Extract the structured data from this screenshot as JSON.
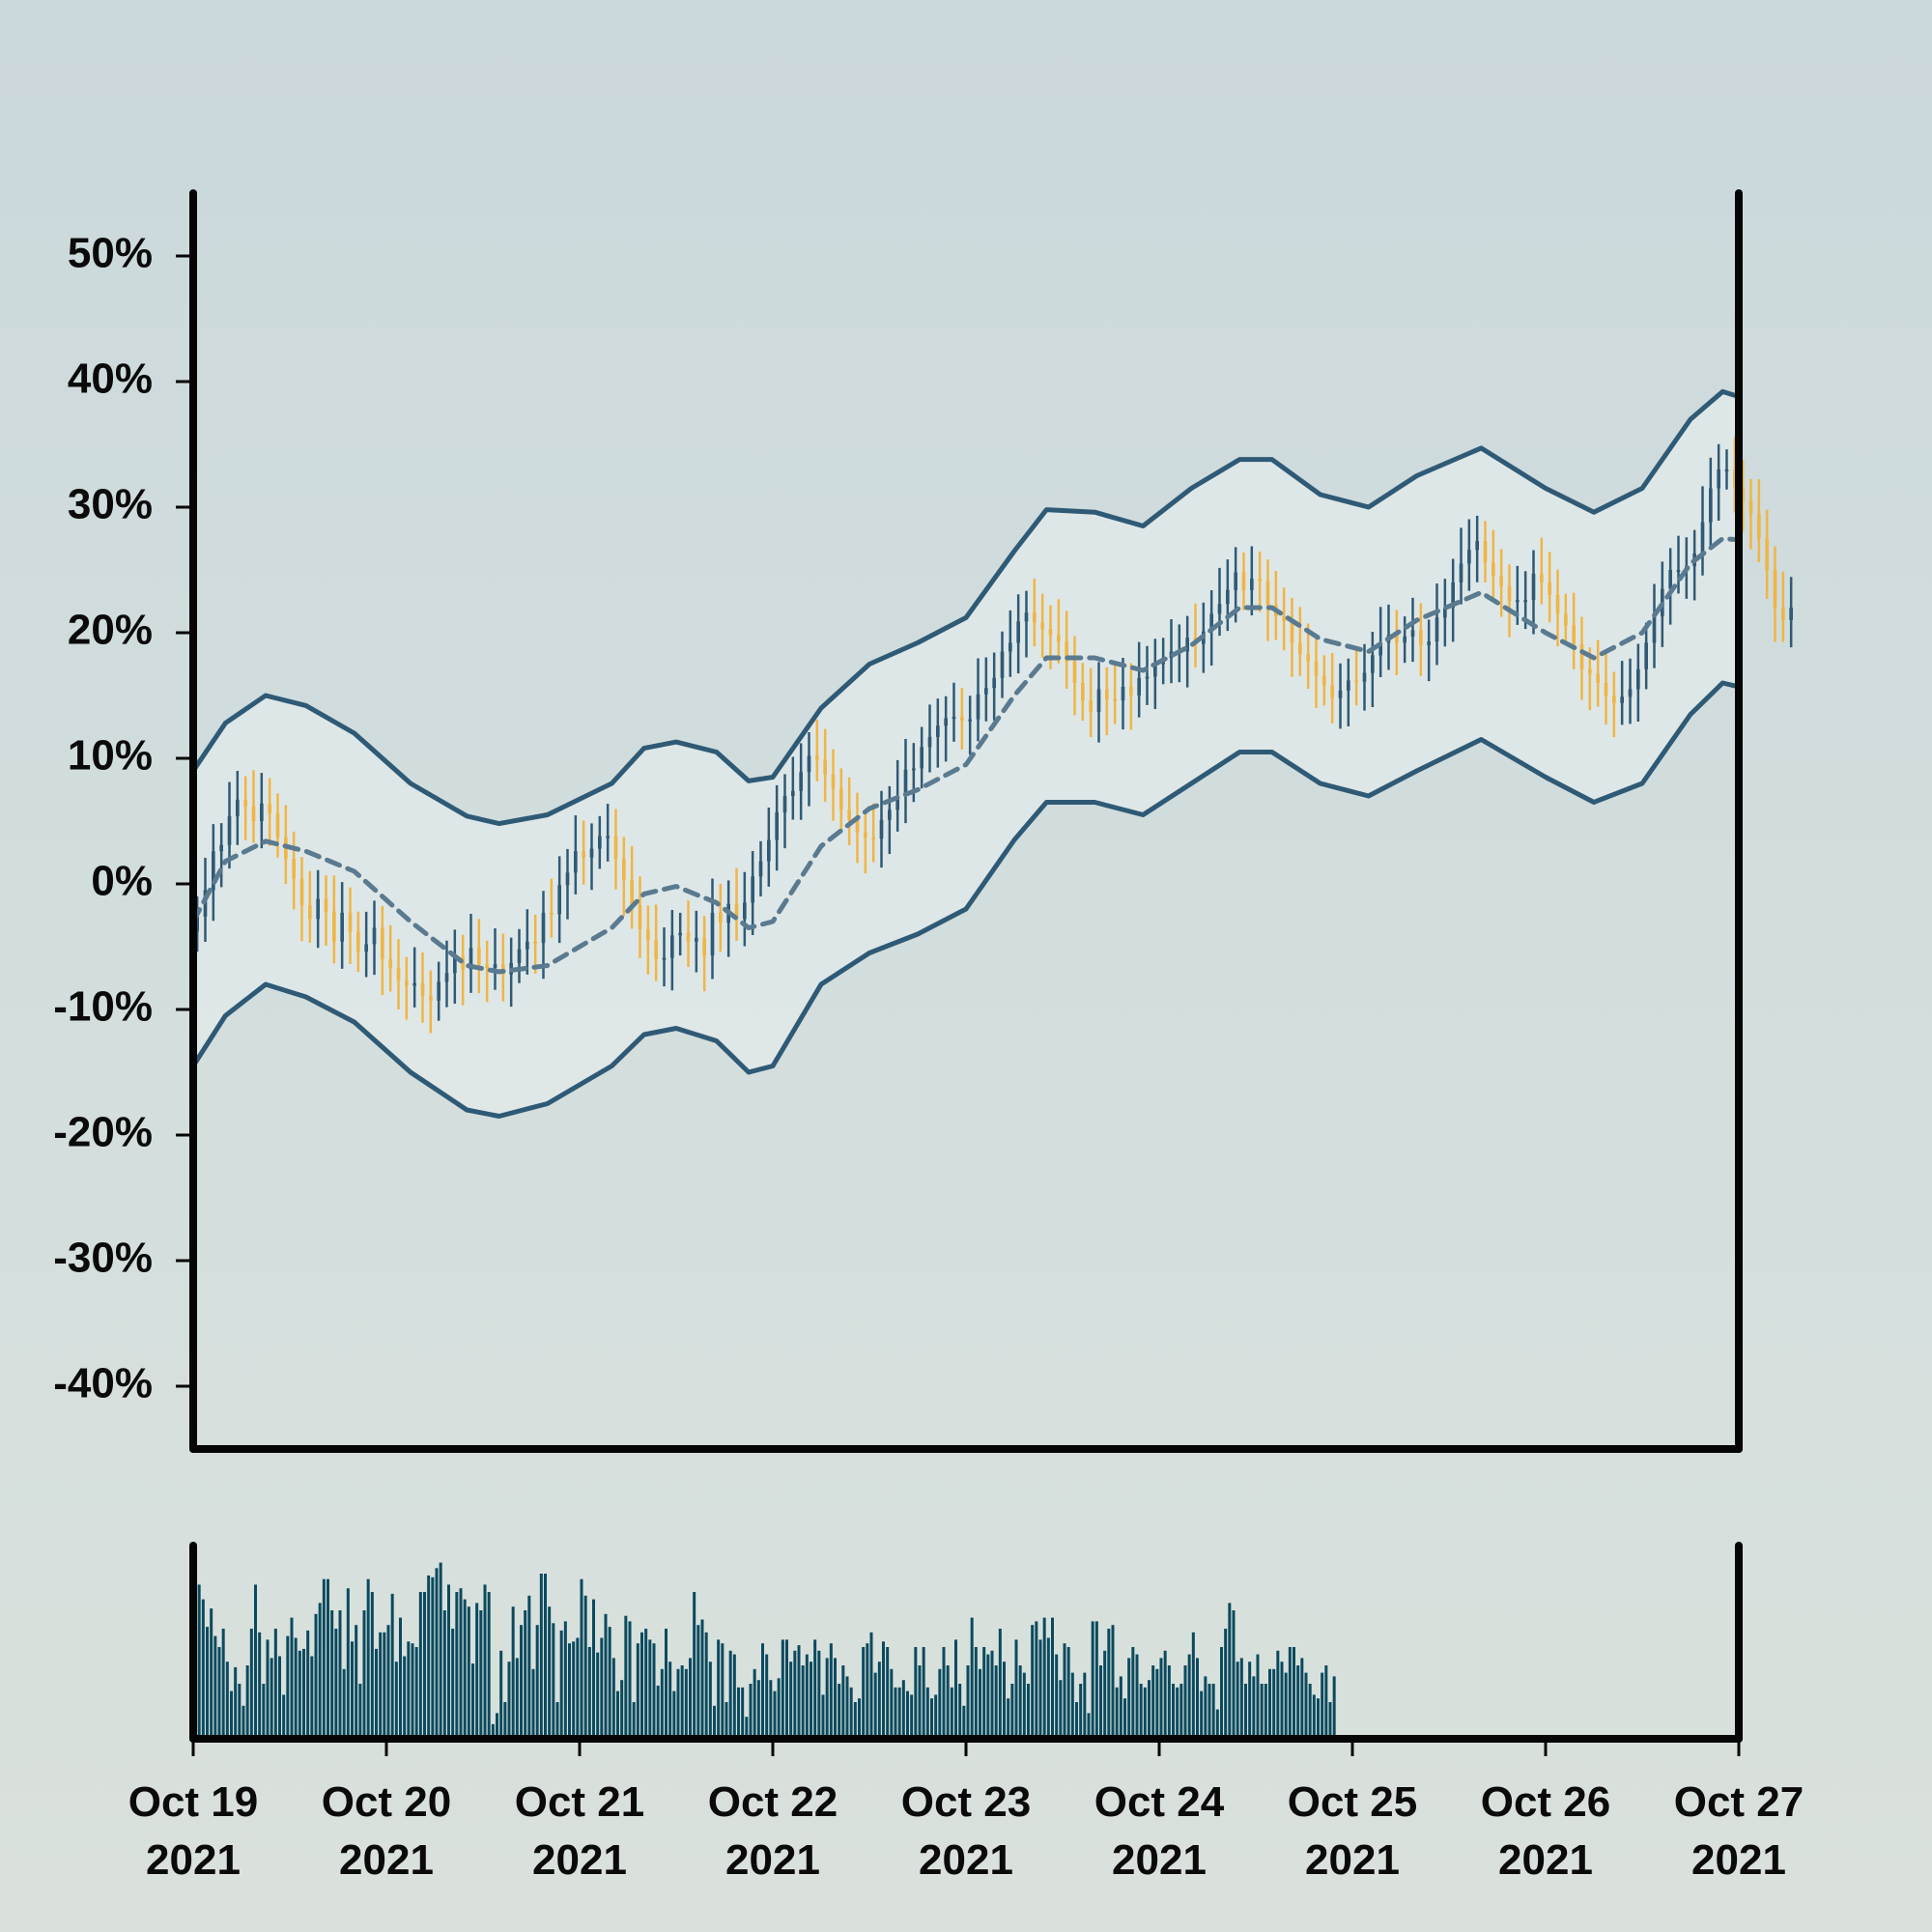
{
  "chart_data": {
    "type": "candlestick",
    "title": "",
    "xlabel": "",
    "ylabel": "",
    "x_start": "2021-10-19",
    "x_end": "2021-10-27",
    "ylim": [
      -45,
      55
    ],
    "y_ticks": [
      {
        "value": 50,
        "label": "50%"
      },
      {
        "value": 40,
        "label": "40%"
      },
      {
        "value": 30,
        "label": "30%"
      },
      {
        "value": 20,
        "label": "20%"
      },
      {
        "value": 10,
        "label": "10%"
      },
      {
        "value": 0,
        "label": "0%"
      },
      {
        "value": -10,
        "label": "-10%"
      },
      {
        "value": -20,
        "label": "-20%"
      },
      {
        "value": -30,
        "label": "-30%"
      },
      {
        "value": -40,
        "label": "-40%"
      }
    ],
    "x_ticks": [
      {
        "date": "2021-10-19",
        "line1": "Oct 19",
        "line2": "2021"
      },
      {
        "date": "2021-10-20",
        "line1": "Oct 20",
        "line2": "2021"
      },
      {
        "date": "2021-10-21",
        "line1": "Oct 21",
        "line2": "2021"
      },
      {
        "date": "2021-10-22",
        "line1": "Oct 22",
        "line2": "2021"
      },
      {
        "date": "2021-10-23",
        "line1": "Oct 23",
        "line2": "2021"
      },
      {
        "date": "2021-10-24",
        "line1": "Oct 24",
        "line2": "2021"
      },
      {
        "date": "2021-10-25",
        "line1": "Oct 25",
        "line2": "2021"
      },
      {
        "date": "2021-10-26",
        "line1": "Oct 26",
        "line2": "2021"
      },
      {
        "date": "2021-10-27",
        "line1": "Oct 27",
        "line2": "2021"
      }
    ],
    "colors": {
      "up": "#2f5a76",
      "down": "#f0b545",
      "band": "#2f5a76",
      "band_fill": "#e1e9e9",
      "mid_line": "#5a7a90",
      "volume": "#0b4a5e",
      "axis": "#050505"
    },
    "bands": {
      "upper": [
        {
          "x": "2021-10-19T00:00",
          "y": 9.0
        },
        {
          "x": "2021-10-19T04:00",
          "y": 12.8
        },
        {
          "x": "2021-10-19T09:00",
          "y": 15.0
        },
        {
          "x": "2021-10-19T14:00",
          "y": 14.2
        },
        {
          "x": "2021-10-19T20:00",
          "y": 12.0
        },
        {
          "x": "2021-10-20T03:00",
          "y": 8.0
        },
        {
          "x": "2021-10-20T10:00",
          "y": 5.4
        },
        {
          "x": "2021-10-20T14:00",
          "y": 4.8
        },
        {
          "x": "2021-10-20T20:00",
          "y": 5.5
        },
        {
          "x": "2021-10-21T04:00",
          "y": 8.0
        },
        {
          "x": "2021-10-21T08:00",
          "y": 10.8
        },
        {
          "x": "2021-10-21T12:00",
          "y": 11.3
        },
        {
          "x": "2021-10-21T17:00",
          "y": 10.5
        },
        {
          "x": "2021-10-21T21:00",
          "y": 8.2
        },
        {
          "x": "2021-10-22T00:00",
          "y": 8.5
        },
        {
          "x": "2021-10-22T06:00",
          "y": 14.0
        },
        {
          "x": "2021-10-22T12:00",
          "y": 17.5
        },
        {
          "x": "2021-10-22T18:00",
          "y": 19.2
        },
        {
          "x": "2021-10-23T00:00",
          "y": 21.2
        },
        {
          "x": "2021-10-23T06:00",
          "y": 26.5
        },
        {
          "x": "2021-10-23T10:00",
          "y": 29.8
        },
        {
          "x": "2021-10-23T16:00",
          "y": 29.6
        },
        {
          "x": "2021-10-23T22:00",
          "y": 28.5
        },
        {
          "x": "2021-10-24T04:00",
          "y": 31.5
        },
        {
          "x": "2021-10-24T10:00",
          "y": 33.8
        },
        {
          "x": "2021-10-24T14:00",
          "y": 33.8
        },
        {
          "x": "2021-10-24T20:00",
          "y": 31.0
        },
        {
          "x": "2021-10-25T02:00",
          "y": 30.0
        },
        {
          "x": "2021-10-25T08:00",
          "y": 32.5
        },
        {
          "x": "2021-10-25T16:00",
          "y": 34.7
        },
        {
          "x": "2021-10-26T00:00",
          "y": 31.5
        },
        {
          "x": "2021-10-26T06:00",
          "y": 29.6
        },
        {
          "x": "2021-10-26T12:00",
          "y": 31.5
        },
        {
          "x": "2021-10-26T18:00",
          "y": 37.0
        },
        {
          "x": "2021-10-26T22:00",
          "y": 39.2
        },
        {
          "x": "2021-10-27T00:00",
          "y": 38.8
        }
      ],
      "middle": [
        {
          "x": "2021-10-19T00:00",
          "y": -3.0
        },
        {
          "x": "2021-10-19T04:00",
          "y": 1.8
        },
        {
          "x": "2021-10-19T09:00",
          "y": 3.4
        },
        {
          "x": "2021-10-19T14:00",
          "y": 2.6
        },
        {
          "x": "2021-10-19T20:00",
          "y": 1.0
        },
        {
          "x": "2021-10-20T03:00",
          "y": -3.0
        },
        {
          "x": "2021-10-20T10:00",
          "y": -6.5
        },
        {
          "x": "2021-10-20T14:00",
          "y": -7.0
        },
        {
          "x": "2021-10-20T20:00",
          "y": -6.5
        },
        {
          "x": "2021-10-21T04:00",
          "y": -3.5
        },
        {
          "x": "2021-10-21T08:00",
          "y": -0.8
        },
        {
          "x": "2021-10-21T12:00",
          "y": -0.2
        },
        {
          "x": "2021-10-21T17:00",
          "y": -1.5
        },
        {
          "x": "2021-10-21T21:00",
          "y": -3.5
        },
        {
          "x": "2021-10-22T00:00",
          "y": -3.0
        },
        {
          "x": "2021-10-22T06:00",
          "y": 3.0
        },
        {
          "x": "2021-10-22T12:00",
          "y": 6.0
        },
        {
          "x": "2021-10-22T18:00",
          "y": 7.5
        },
        {
          "x": "2021-10-23T00:00",
          "y": 9.5
        },
        {
          "x": "2021-10-23T06:00",
          "y": 15.0
        },
        {
          "x": "2021-10-23T10:00",
          "y": 18.0
        },
        {
          "x": "2021-10-23T16:00",
          "y": 18.0
        },
        {
          "x": "2021-10-23T22:00",
          "y": 17.0
        },
        {
          "x": "2021-10-24T04:00",
          "y": 19.0
        },
        {
          "x": "2021-10-24T10:00",
          "y": 22.0
        },
        {
          "x": "2021-10-24T14:00",
          "y": 22.0
        },
        {
          "x": "2021-10-24T20:00",
          "y": 19.5
        },
        {
          "x": "2021-10-25T02:00",
          "y": 18.5
        },
        {
          "x": "2021-10-25T08:00",
          "y": 21.0
        },
        {
          "x": "2021-10-25T16:00",
          "y": 23.2
        },
        {
          "x": "2021-10-26T00:00",
          "y": 20.0
        },
        {
          "x": "2021-10-26T06:00",
          "y": 18.0
        },
        {
          "x": "2021-10-26T12:00",
          "y": 20.0
        },
        {
          "x": "2021-10-26T18:00",
          "y": 25.5
        },
        {
          "x": "2021-10-26T22:00",
          "y": 27.5
        },
        {
          "x": "2021-10-27T00:00",
          "y": 27.4
        }
      ],
      "lower": [
        {
          "x": "2021-10-19T00:00",
          "y": -14.5
        },
        {
          "x": "2021-10-19T04:00",
          "y": -10.5
        },
        {
          "x": "2021-10-19T09:00",
          "y": -8.0
        },
        {
          "x": "2021-10-19T14:00",
          "y": -9.0
        },
        {
          "x": "2021-10-19T20:00",
          "y": -11.0
        },
        {
          "x": "2021-10-20T03:00",
          "y": -15.0
        },
        {
          "x": "2021-10-20T10:00",
          "y": -18.0
        },
        {
          "x": "2021-10-20T14:00",
          "y": -18.5
        },
        {
          "x": "2021-10-20T20:00",
          "y": -17.5
        },
        {
          "x": "2021-10-21T04:00",
          "y": -14.5
        },
        {
          "x": "2021-10-21T08:00",
          "y": -12.0
        },
        {
          "x": "2021-10-21T12:00",
          "y": -11.5
        },
        {
          "x": "2021-10-21T17:00",
          "y": -12.5
        },
        {
          "x": "2021-10-21T21:00",
          "y": -15.0
        },
        {
          "x": "2021-10-22T00:00",
          "y": -14.5
        },
        {
          "x": "2021-10-22T06:00",
          "y": -8.0
        },
        {
          "x": "2021-10-22T12:00",
          "y": -5.5
        },
        {
          "x": "2021-10-22T18:00",
          "y": -4.0
        },
        {
          "x": "2021-10-23T00:00",
          "y": -2.0
        },
        {
          "x": "2021-10-23T06:00",
          "y": 3.5
        },
        {
          "x": "2021-10-23T10:00",
          "y": 6.5
        },
        {
          "x": "2021-10-23T16:00",
          "y": 6.5
        },
        {
          "x": "2021-10-23T22:00",
          "y": 5.5
        },
        {
          "x": "2021-10-24T04:00",
          "y": 8.0
        },
        {
          "x": "2021-10-24T10:00",
          "y": 10.5
        },
        {
          "x": "2021-10-24T14:00",
          "y": 10.5
        },
        {
          "x": "2021-10-24T20:00",
          "y": 8.0
        },
        {
          "x": "2021-10-25T02:00",
          "y": 7.0
        },
        {
          "x": "2021-10-25T08:00",
          "y": 9.0
        },
        {
          "x": "2021-10-25T16:00",
          "y": 11.5
        },
        {
          "x": "2021-10-26T00:00",
          "y": 8.5
        },
        {
          "x": "2021-10-26T06:00",
          "y": 6.5
        },
        {
          "x": "2021-10-26T12:00",
          "y": 8.0
        },
        {
          "x": "2021-10-26T18:00",
          "y": 13.5
        },
        {
          "x": "2021-10-26T22:00",
          "y": 16.0
        },
        {
          "x": "2021-10-27T00:00",
          "y": 15.7
        }
      ]
    },
    "candles": {
      "interval_hours": 1,
      "first_x": "2021-10-19T00:30",
      "close": [
        -2.6,
        -0.5,
        2.6,
        3.1,
        5.4,
        6.7,
        6.2,
        5.0,
        6.4,
        5.6,
        3.7,
        2.0,
        0.4,
        -1.7,
        -2.8,
        -1.2,
        -2.2,
        -4.6,
        -2.3,
        -3.8,
        -5.4,
        -4.8,
        -3.5,
        -6.0,
        -6.7,
        -7.7,
        -8.1,
        -7.9,
        -8.9,
        -9.3,
        -7.8,
        -7.1,
        -5.8,
        -6.8,
        -5.1,
        -6.4,
        -6.7,
        -6.4,
        -7.2,
        -6.3,
        -5.2,
        -4.6,
        -4.7,
        -2.3,
        -2.4,
        -0.1,
        0.9,
        2.6,
        2.1,
        2.8,
        3.8,
        3.8,
        2.0,
        0.3,
        -1.7,
        -3.6,
        -4.5,
        -6.0,
        -5.9,
        -4.1,
        -3.9,
        -4.6,
        -4.3,
        -5.7,
        -2.3,
        -3.1,
        -1.6,
        -2.8,
        -1.5,
        0.6,
        1.8,
        3.5,
        5.7,
        7.0,
        7.4,
        8.9,
        10.2,
        9.9,
        8.7,
        7.6,
        5.9,
        5.1,
        4.1,
        3.7,
        3.6,
        5.1,
        5.9,
        7.0,
        9.1,
        9.2,
        10.9,
        11.7,
        12.6,
        13.2,
        13.3,
        13.0,
        13.1,
        15.1,
        15.6,
        16.4,
        18.5,
        19.2,
        20.9,
        21.6,
        20.8,
        20.3,
        19.8,
        19.3,
        17.7,
        16.0,
        14.6,
        13.7,
        15.5,
        14.7,
        14.6,
        15.7,
        15.0,
        16.4,
        16.5,
        17.5,
        18.0,
        18.5,
        18.5,
        19.6,
        19.1,
        20.1,
        21.5,
        22.3,
        23.4,
        24.8,
        23.4,
        24.3,
        24.1,
        22.2,
        21.3,
        20.9,
        19.2,
        18.3,
        17.7,
        16.6,
        15.8,
        14.8,
        15.4,
        16.2,
        16.1,
        16.8,
        18.2,
        19.2,
        19.8,
        19.2,
        19.7,
        20.2,
        19.0,
        19.3,
        21.2,
        22.0,
        24.0,
        25.5,
        26.6,
        27.3,
        25.6,
        24.5,
        23.7,
        22.5,
        22.6,
        22.6,
        24.7,
        24.0,
        23.0,
        21.5,
        20.6,
        19.1,
        17.1,
        16.7,
        16.0,
        15.0,
        14.4,
        14.9,
        15.5,
        17.1,
        19.2,
        21.3,
        23.5,
        25.0,
        25.0,
        25.3,
        26.3,
        28.8,
        31.5,
        33.0,
        33.0,
        31.6,
        30.5,
        29.5,
        27.5,
        25.0,
        22.0,
        21.0,
        22.0
      ]
    },
    "volume": {
      "interval_hours": 0.5,
      "ymax": 100,
      "values": [
        62,
        84,
        76,
        61,
        71,
        56,
        50,
        60,
        42,
        26,
        39,
        30,
        18,
        40,
        60,
        84,
        58,
        30,
        54,
        44,
        60,
        45,
        24,
        56,
        66,
        55,
        48,
        49,
        59,
        45,
        68,
        74,
        87,
        87,
        70,
        60,
        70,
        38,
        82,
        53,
        62,
        30,
        70,
        87,
        80,
        49,
        58,
        58,
        62,
        79,
        42,
        66,
        45,
        53,
        52,
        50,
        80,
        80,
        89,
        88,
        93,
        96,
        70,
        84,
        60,
        80,
        82,
        76,
        72,
        41,
        74,
        70,
        84,
        80,
        8,
        14,
        48,
        20,
        42,
        72,
        44,
        62,
        70,
        78,
        38,
        62,
        90,
        90,
        72,
        63,
        20,
        59,
        64,
        52,
        53,
        55,
        87,
        78,
        50,
        76,
        47,
        55,
        68,
        61,
        44,
        26,
        32,
        67,
        64,
        20,
        52,
        58,
        60,
        54,
        52,
        29,
        38,
        60,
        42,
        26,
        38,
        40,
        38,
        44,
        80,
        62,
        65,
        58,
        42,
        18,
        54,
        52,
        20,
        48,
        46,
        28,
        28,
        12,
        30,
        38,
        32,
        52,
        46,
        32,
        26,
        33,
        54,
        54,
        42,
        48,
        51,
        40,
        46,
        42,
        54,
        48,
        24,
        44,
        52,
        44,
        30,
        40,
        34,
        28,
        20,
        22,
        50,
        52,
        58,
        36,
        42,
        53,
        50,
        38,
        28,
        28,
        32,
        26,
        24,
        50,
        40,
        50,
        28,
        22,
        24,
        38,
        50,
        40,
        28,
        54,
        30,
        18,
        40,
        66,
        50,
        38,
        50,
        46,
        48,
        40,
        60,
        42,
        22,
        30,
        54,
        40,
        36,
        30,
        62,
        64,
        54,
        66,
        55,
        66,
        46,
        32,
        52,
        50,
        36,
        20,
        30,
        36,
        14,
        64,
        64,
        40,
        48,
        60,
        62,
        28,
        34,
        22,
        44,
        50,
        46,
        30,
        28,
        32,
        40,
        38,
        44,
        48,
        40,
        30,
        28,
        30,
        40,
        46,
        58,
        44,
        26,
        34,
        30,
        30,
        16,
        50,
        60,
        74,
        70,
        42,
        44,
        30,
        42,
        34,
        46,
        30,
        30,
        38,
        38,
        48,
        42,
        36,
        50,
        50,
        40,
        44,
        36,
        30,
        24,
        22,
        36,
        40,
        20,
        34
      ]
    }
  }
}
